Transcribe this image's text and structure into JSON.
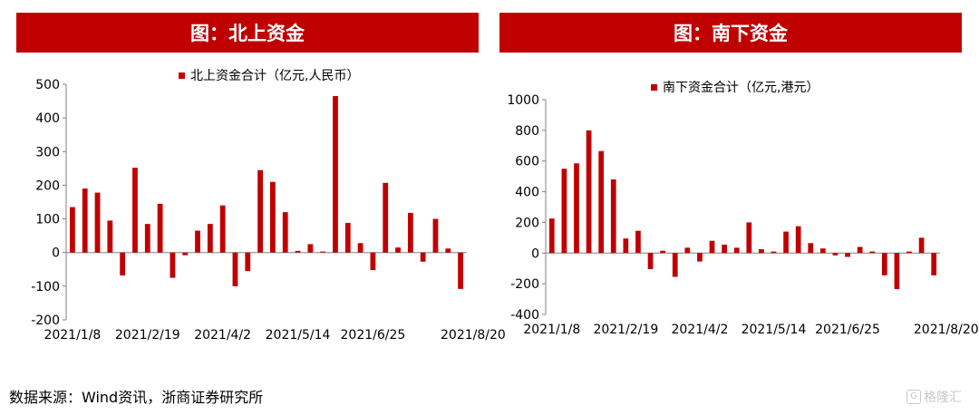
{
  "panels": [
    {
      "title": "图：北上资金"
    },
    {
      "title": "图：南下资金"
    }
  ],
  "source": "数据来源：Wind资讯，浙商证券研究所",
  "watermark": "格隆汇",
  "colors": {
    "bar": "#c00000",
    "header": "#c00000",
    "axis": "#808080"
  },
  "chart_data": [
    {
      "type": "bar",
      "legend": "北上资金合计（亿元,人民币）",
      "legend_position": "top",
      "ylim": [
        -200,
        500
      ],
      "yticks": [
        -200,
        -100,
        0,
        100,
        200,
        300,
        400,
        500
      ],
      "xtick_labels": [
        "2021/1/8",
        "2021/2/19",
        "2021/4/2",
        "2021/5/14",
        "2021/6/25",
        "2021/8/20"
      ],
      "xtick_indices": [
        0,
        6,
        12,
        18,
        24,
        32
      ],
      "values": [
        135,
        190,
        178,
        95,
        -68,
        252,
        85,
        145,
        -75,
        -8,
        65,
        85,
        140,
        -100,
        -55,
        245,
        210,
        120,
        5,
        25,
        3,
        465,
        88,
        28,
        -52,
        207,
        15,
        118,
        -27,
        100,
        12,
        -108
      ],
      "grid": false
    },
    {
      "type": "bar",
      "legend": "南下资金合计（亿元,港元）",
      "legend_position": "top",
      "ylim": [
        -400,
        1000
      ],
      "yticks": [
        -400,
        -200,
        0,
        200,
        400,
        600,
        800,
        1000
      ],
      "xtick_labels": [
        "2021/1/8",
        "2021/2/19",
        "2021/4/2",
        "2021/5/14",
        "2021/6/25",
        "2021/8/20"
      ],
      "xtick_indices": [
        0,
        6,
        12,
        18,
        24,
        32
      ],
      "values": [
        225,
        550,
        585,
        800,
        665,
        480,
        95,
        145,
        -105,
        15,
        -155,
        35,
        -55,
        80,
        55,
        35,
        200,
        25,
        10,
        140,
        175,
        65,
        30,
        -15,
        -25,
        40,
        10,
        -145,
        -235,
        10,
        100,
        -145
      ],
      "grid": false
    }
  ]
}
